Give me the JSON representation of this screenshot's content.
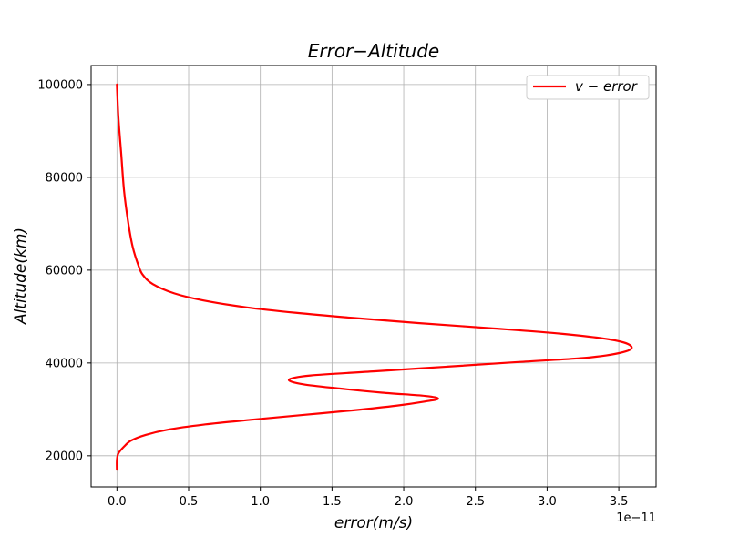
{
  "chart_data": {
    "type": "line",
    "title": "Error−Altitude",
    "xlabel": "error(m/s)",
    "ylabel": "Altitude(km)",
    "x_offset_label": "1e−11",
    "xlim": [
      -0.18,
      3.76
    ],
    "ylim": [
      13300,
      104100
    ],
    "grid": true,
    "legend_position": "top-right",
    "x_ticks": [
      0.0,
      0.5,
      1.0,
      1.5,
      2.0,
      2.5,
      3.0,
      3.5
    ],
    "x_tick_labels": [
      "0.0",
      "0.5",
      "1.0",
      "1.5",
      "2.0",
      "2.5",
      "3.0",
      "3.5"
    ],
    "y_ticks": [
      20000,
      40000,
      60000,
      80000,
      100000
    ],
    "y_tick_labels": [
      "20000",
      "40000",
      "60000",
      "80000",
      "100000"
    ],
    "series": [
      {
        "name": "v − error",
        "color": "#ff0000",
        "points": [
          [
            0.0,
            17000
          ],
          [
            0.0,
            19000
          ],
          [
            0.01,
            20500
          ],
          [
            0.05,
            22000
          ],
          [
            0.1,
            23300
          ],
          [
            0.2,
            24500
          ],
          [
            0.35,
            25600
          ],
          [
            0.6,
            26700
          ],
          [
            0.95,
            27800
          ],
          [
            1.3,
            28800
          ],
          [
            1.65,
            29800
          ],
          [
            1.95,
            30800
          ],
          [
            2.15,
            31700
          ],
          [
            2.24,
            32300
          ],
          [
            2.15,
            32900
          ],
          [
            1.85,
            33600
          ],
          [
            1.55,
            34500
          ],
          [
            1.3,
            35400
          ],
          [
            1.2,
            36400
          ],
          [
            1.35,
            37300
          ],
          [
            1.8,
            38200
          ],
          [
            2.3,
            39200
          ],
          [
            2.8,
            40200
          ],
          [
            3.3,
            41200
          ],
          [
            3.55,
            42500
          ],
          [
            3.58,
            43800
          ],
          [
            3.45,
            45000
          ],
          [
            3.1,
            46300
          ],
          [
            2.6,
            47500
          ],
          [
            2.1,
            48600
          ],
          [
            1.65,
            49700
          ],
          [
            1.25,
            50800
          ],
          [
            0.9,
            52000
          ],
          [
            0.6,
            53500
          ],
          [
            0.4,
            55000
          ],
          [
            0.25,
            57000
          ],
          [
            0.18,
            59000
          ],
          [
            0.15,
            61000
          ],
          [
            0.11,
            65000
          ],
          [
            0.08,
            70000
          ],
          [
            0.05,
            77000
          ],
          [
            0.03,
            85000
          ],
          [
            0.01,
            93000
          ],
          [
            0.0,
            100000
          ]
        ]
      }
    ]
  }
}
